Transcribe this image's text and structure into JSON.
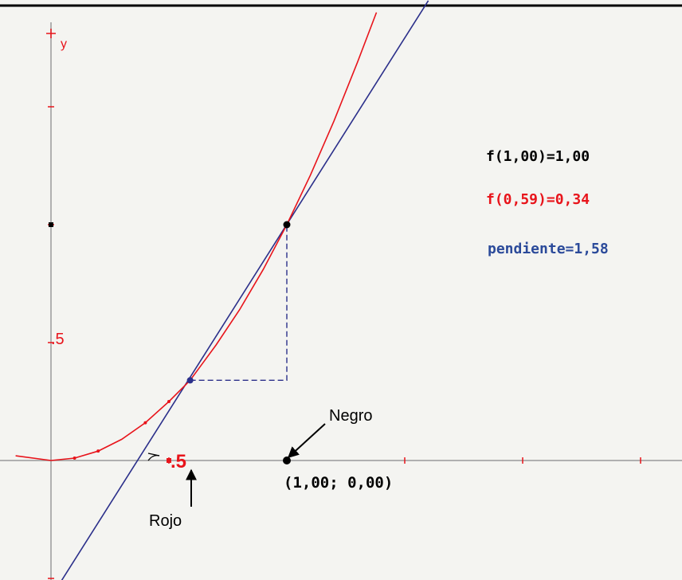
{
  "chart_data": {
    "type": "line",
    "title": "",
    "xlabel": "",
    "ylabel": "y",
    "xlim": [
      -0.1,
      2.7
    ],
    "ylim": [
      -0.5,
      1.9
    ],
    "grid": false,
    "tick_labels": {
      "x_half": ".5",
      "y_half": ".5"
    },
    "series": [
      {
        "color": "#e8141b",
        "function": "x^2",
        "x": [
          -0.15,
          0.0,
          0.1,
          0.2,
          0.3,
          0.4,
          0.5,
          0.59,
          0.7,
          0.8,
          0.9,
          1.0,
          1.1,
          1.2,
          1.3,
          1.38
        ],
        "values": [
          0.02,
          0.0,
          0.01,
          0.04,
          0.09,
          0.16,
          0.25,
          0.34,
          0.49,
          0.64,
          0.81,
          1.0,
          1.21,
          1.44,
          1.69,
          1.9
        ]
      },
      {
        "color": "#2b2f8a",
        "function": "secant",
        "x": [
          0.0,
          1.6
        ],
        "values": [
          -0.58,
          1.95
        ]
      }
    ],
    "points": {
      "negro": {
        "x": 1.0,
        "y": 1.0
      },
      "rojo": {
        "x": 0.59,
        "y": 0.34
      },
      "axis_point": {
        "x": 1.0,
        "y": 0.0
      }
    },
    "readouts": {
      "f_black": "f(1,00)=1,00",
      "f_red": "f(0,59)=0,34",
      "slope": "pendiente=1,58"
    },
    "annotations": {
      "negro": "Negro",
      "rojo": "Rojo",
      "coord": "(1,00; 0,00)"
    },
    "colors": {
      "red": "#e8141b",
      "blue": "#2b2f8a",
      "black": "#000000",
      "axis": "#9a9a9a",
      "background": "#f4f4f1"
    }
  }
}
